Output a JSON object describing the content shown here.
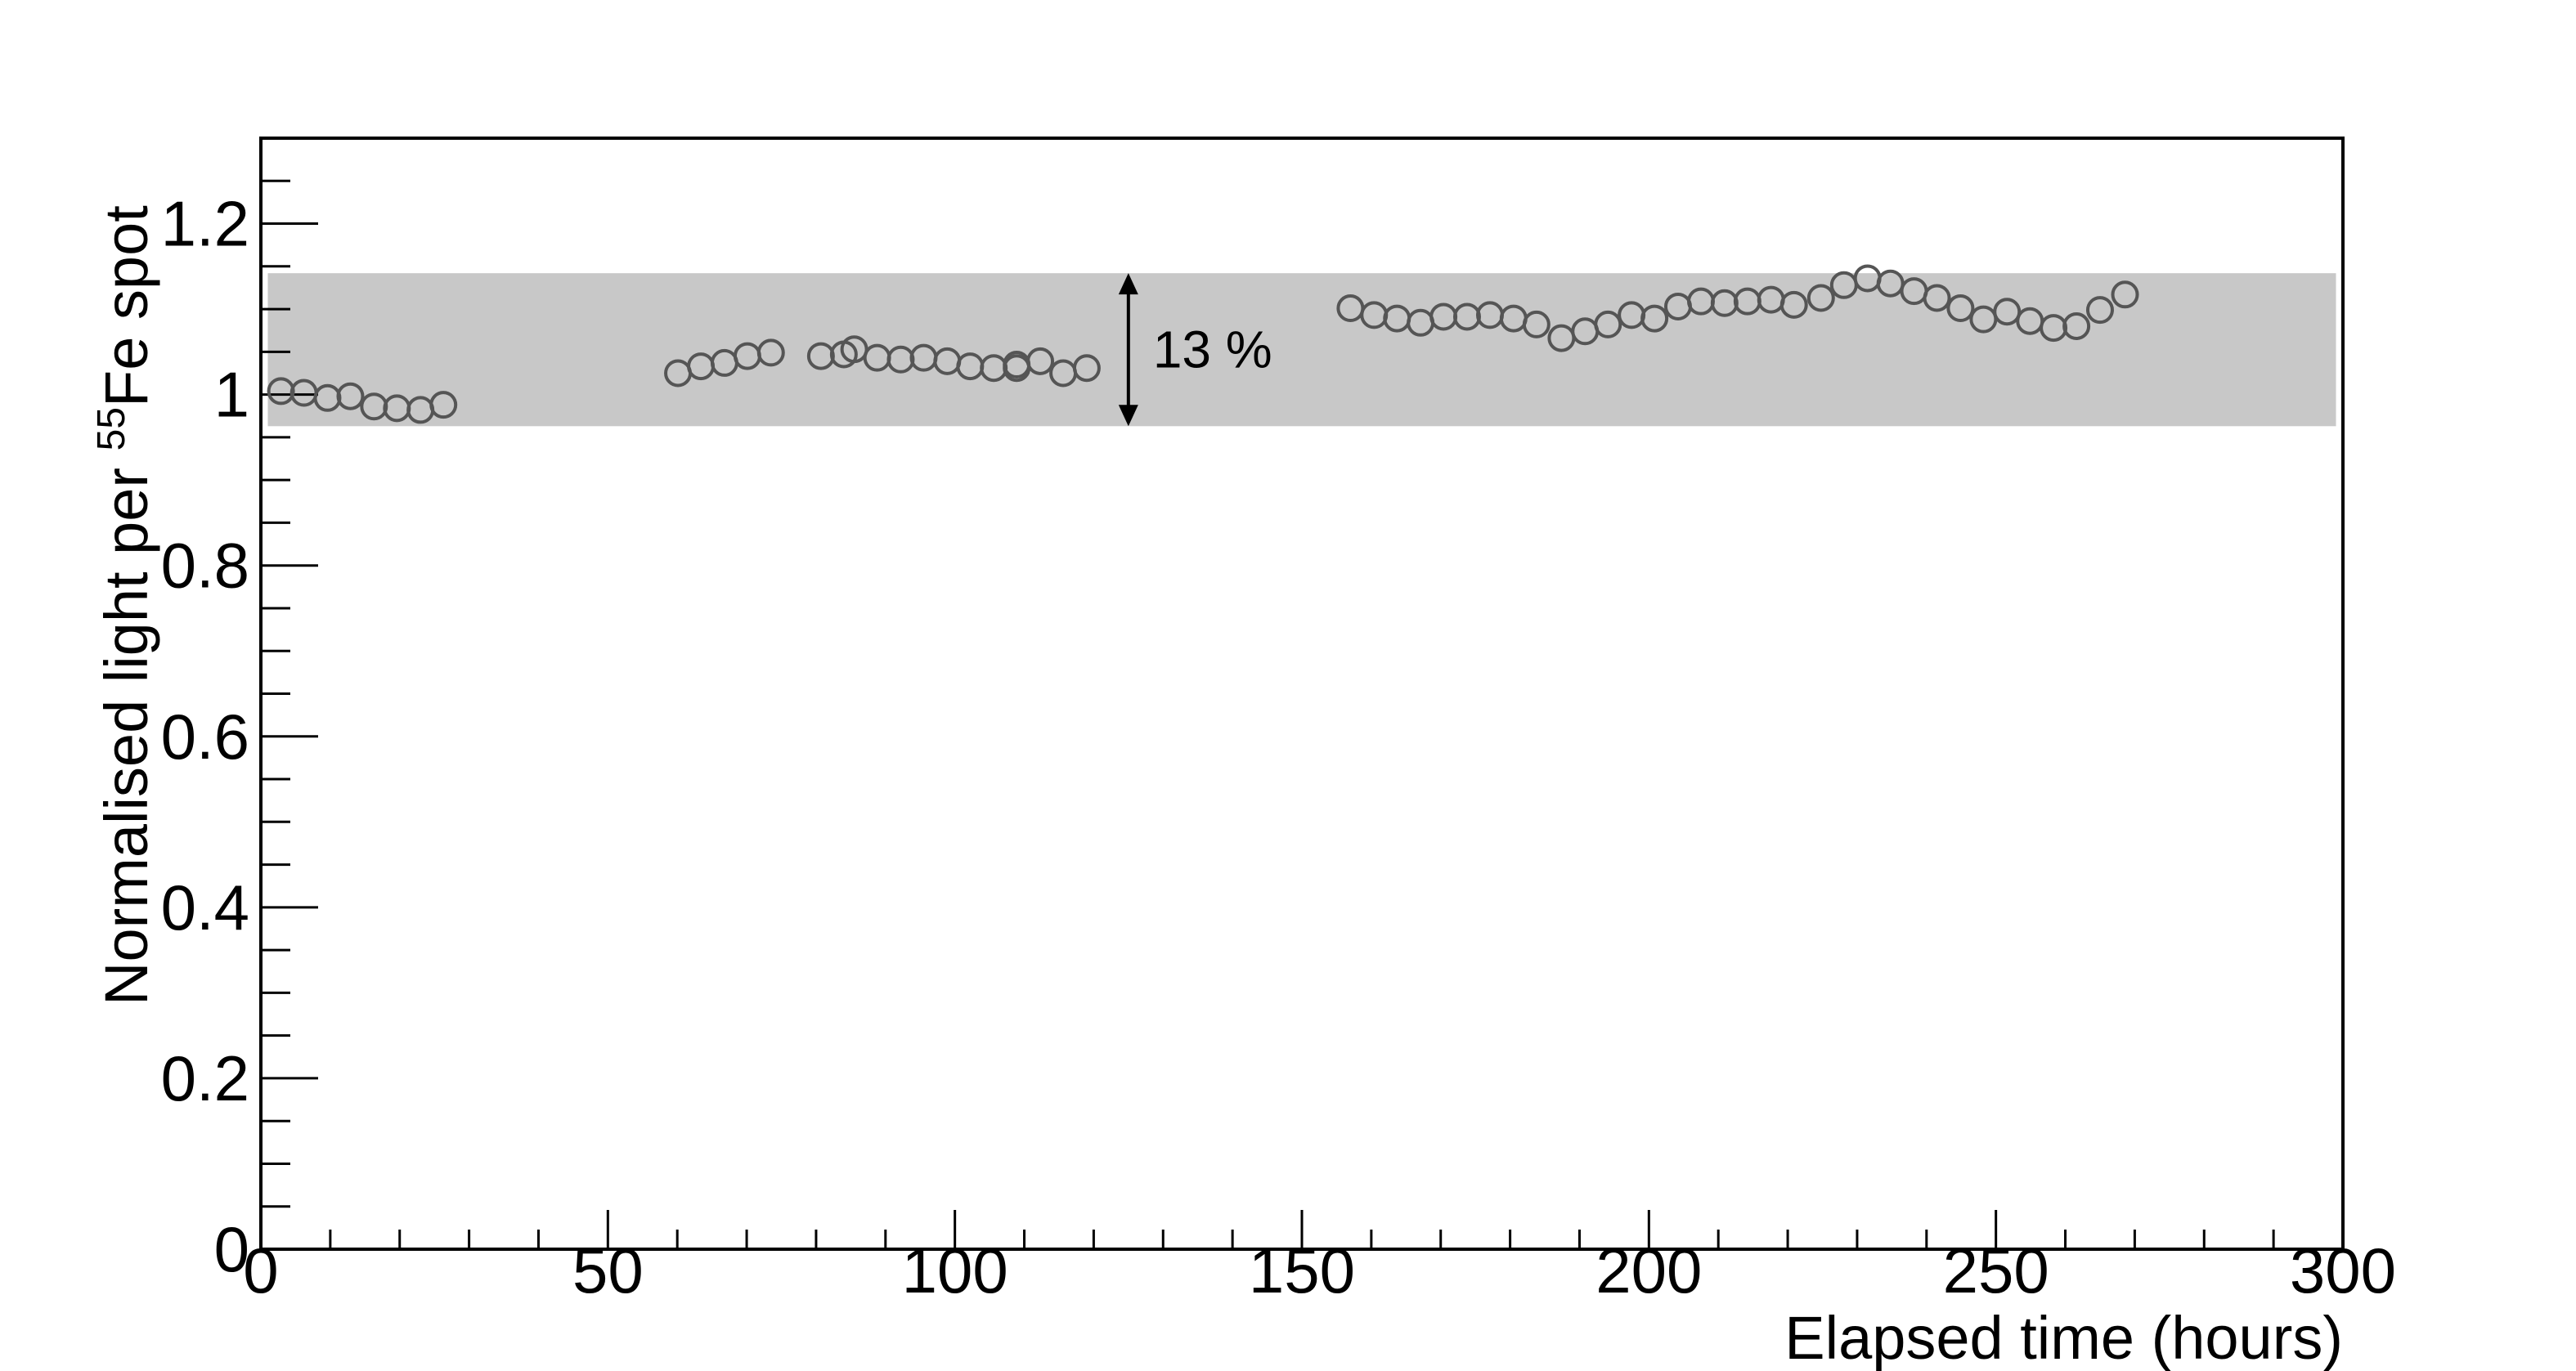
{
  "chart_data": {
    "type": "scatter",
    "xlabel": "Elapsed time (hours)",
    "ylabel": [
      "Normalised light per ",
      "55",
      "Fe spot"
    ],
    "xlim": [
      0,
      300
    ],
    "xticks": [
      0,
      50,
      100,
      150,
      200,
      250,
      300
    ],
    "ylim": [
      0,
      1.3
    ],
    "yticks": [
      0,
      0.2,
      0.4,
      0.6,
      0.8,
      1,
      1.2
    ],
    "band": {
      "xmin": 1,
      "xmax": 299,
      "ymin": 0.963,
      "ymax": 1.142,
      "color": "#c8c8c8"
    },
    "annotation": {
      "text": "13 %",
      "x": 125
    },
    "series": [
      {
        "color": "#555555",
        "x": [
          2.9,
          6.2,
          9.6,
          12.9,
          16.3,
          19.6,
          23,
          26.3,
          60.1,
          63.4,
          66.8,
          70.1,
          73.5,
          80.7,
          84,
          85.5,
          88.8,
          92.2,
          95.5,
          98.9,
          102.2,
          105.6,
          108.9,
          108.9,
          112.3,
          115.6,
          119,
          157,
          160.4,
          163.7,
          167.1,
          170.4,
          173.8,
          177.1,
          180.5,
          183.8,
          187.4,
          190.8,
          194.1,
          197.5,
          200.8,
          204.2,
          207.5,
          210.9,
          214.2,
          217.6,
          220.9,
          224.8,
          228.1,
          231.5,
          234.8,
          238.2,
          241.5,
          244.9,
          248.2,
          251.6,
          254.9,
          258.3,
          261.6,
          265,
          268.6
        ],
        "values": [
          1.004,
          1.002,
          0.996,
          0.998,
          0.986,
          0.984,
          0.982,
          0.988,
          1.025,
          1.033,
          1.037,
          1.045,
          1.049,
          1.045,
          1.047,
          1.053,
          1.043,
          1.041,
          1.043,
          1.039,
          1.033,
          1.031,
          1.031,
          1.035,
          1.039,
          1.025,
          1.031,
          1.101,
          1.093,
          1.089,
          1.084,
          1.091,
          1.091,
          1.093,
          1.089,
          1.082,
          1.066,
          1.074,
          1.082,
          1.093,
          1.089,
          1.103,
          1.109,
          1.107,
          1.109,
          1.111,
          1.105,
          1.113,
          1.128,
          1.136,
          1.13,
          1.121,
          1.113,
          1.101,
          1.088,
          1.097,
          1.086,
          1.078,
          1.08,
          1.099,
          1.117
        ]
      }
    ]
  }
}
